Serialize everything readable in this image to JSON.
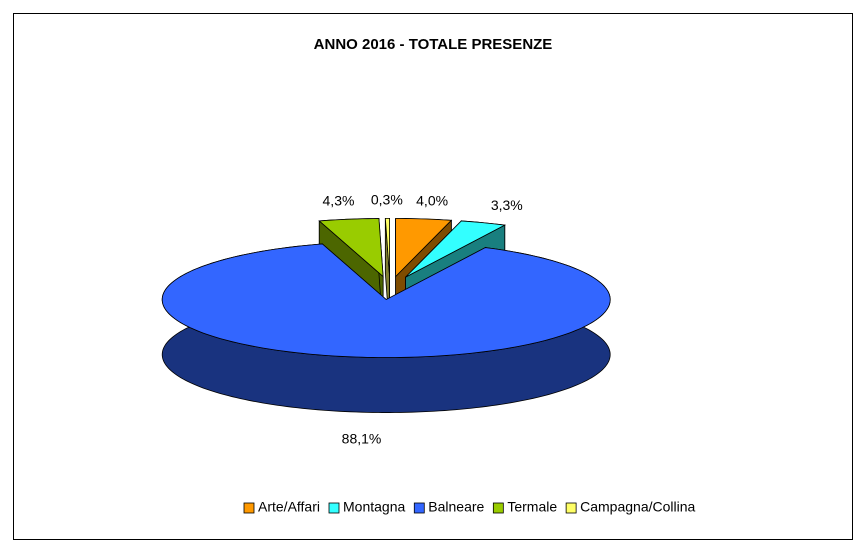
{
  "chart_data": {
    "type": "pie3d",
    "title": "ANNO 2016 - TOTALE PRESENZE",
    "categories": [
      "Arte/Affari",
      "Montagna",
      "Balneare",
      "Termale",
      "Campagna/Collina"
    ],
    "values": [
      4.0,
      3.3,
      88.1,
      4.3,
      0.3
    ],
    "value_labels": [
      "4,0%",
      "3,3%",
      "88,1%",
      "4,3%",
      "0,3%"
    ],
    "colors": [
      "#ff9900",
      "#33ffff",
      "#3366ff",
      "#99cc00",
      "#ffff66"
    ],
    "legend": "bottom"
  }
}
